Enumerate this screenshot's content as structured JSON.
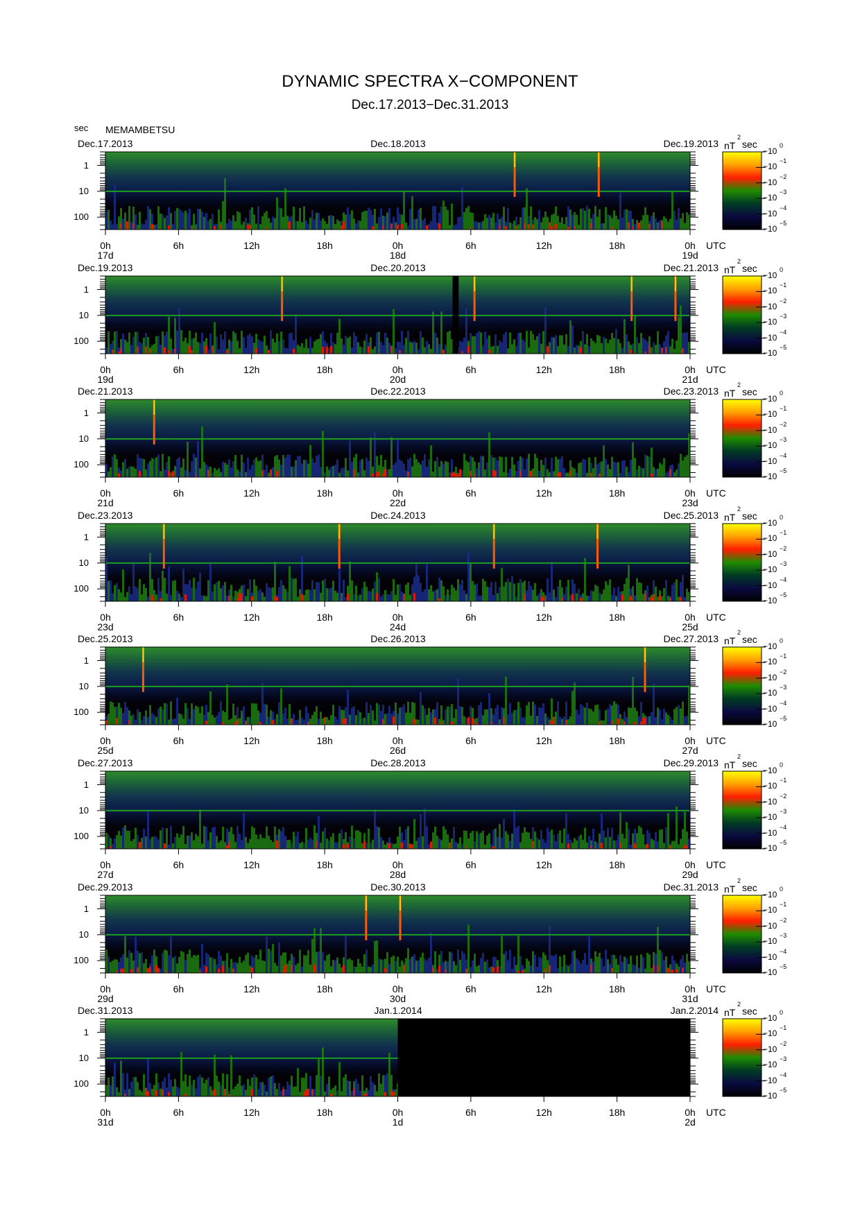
{
  "header": {
    "title": "DYNAMIC SPECTRA X−COMPONENT",
    "subtitle": "Dec.17.2013−Dec.31.2013",
    "y_unit": "sec",
    "station": "MEMAMBETSU"
  },
  "chart_data": {
    "type": "heatmap",
    "y_axis": {
      "label": "sec",
      "scale": "log",
      "range": [
        0.3,
        300
      ],
      "ticks": [
        "1",
        "10",
        "100"
      ],
      "inverted": true
    },
    "x_axis": {
      "ticks": [
        "0h",
        "6h",
        "12h",
        "18h",
        "0h",
        "6h",
        "12h",
        "18h",
        "0h"
      ],
      "unit_label": "UTC",
      "span_hours": 48
    },
    "colorbar": {
      "label": "nT",
      "label_sup": "2",
      "label_tail": "sec",
      "scale": "log",
      "tick_base": "10",
      "tick_exponents": [
        "0",
        "−1",
        "−2",
        "−3",
        "−4",
        "−5"
      ],
      "colors": [
        "#ffff00",
        "#ffa000",
        "#ff1e00",
        "#1e8c00",
        "#003a24",
        "#0a0a40",
        "#000000"
      ]
    },
    "line_color": "#1c9e1c",
    "panels": [
      {
        "start_date": "Dec.17.2013",
        "mid_date": "Dec.18.2013",
        "end_date": "Dec.19.2013",
        "day_labels": [
          "17d",
          "18d",
          "19d"
        ],
        "spikes_hours": [
          33.6,
          40.5
        ],
        "gap_hours": [],
        "nodata_from_hours": null
      },
      {
        "start_date": "Dec.19.2013",
        "mid_date": "Dec.20.2013",
        "end_date": "Dec.21.2013",
        "day_labels": [
          "19d",
          "20d",
          "21d"
        ],
        "spikes_hours": [
          14.5,
          30.3,
          43.2,
          46.8
        ],
        "gap_hours": [
          28.5,
          29.0
        ],
        "nodata_from_hours": null
      },
      {
        "start_date": "Dec.21.2013",
        "mid_date": "Dec.22.2013",
        "end_date": "Dec.23.2013",
        "day_labels": [
          "21d",
          "22d",
          "23d"
        ],
        "spikes_hours": [
          4.0
        ],
        "gap_hours": [],
        "nodata_from_hours": null
      },
      {
        "start_date": "Dec.23.2013",
        "mid_date": "Dec.24.2013",
        "end_date": "Dec.25.2013",
        "day_labels": [
          "23d",
          "24d",
          "25d"
        ],
        "spikes_hours": [
          4.8,
          19.2,
          31.9,
          40.4
        ],
        "gap_hours": [],
        "nodata_from_hours": null
      },
      {
        "start_date": "Dec.25.2013",
        "mid_date": "Dec.26.2013",
        "end_date": "Dec.27.2013",
        "day_labels": [
          "25d",
          "26d",
          "27d"
        ],
        "spikes_hours": [
          3.1,
          44.3
        ],
        "gap_hours": [],
        "nodata_from_hours": null
      },
      {
        "start_date": "Dec.27.2013",
        "mid_date": "Dec.28.2013",
        "end_date": "Dec.29.2013",
        "day_labels": [
          "27d",
          "28d",
          "29d"
        ],
        "spikes_hours": [],
        "gap_hours": [],
        "nodata_from_hours": null
      },
      {
        "start_date": "Dec.29.2013",
        "mid_date": "Dec.30.2013",
        "end_date": "Dec.31.2013",
        "day_labels": [
          "29d",
          "30d",
          "31d"
        ],
        "spikes_hours": [
          21.4,
          24.2
        ],
        "gap_hours": [],
        "nodata_from_hours": null
      },
      {
        "start_date": "Dec.31.2013",
        "mid_date": "Jan.1.2014",
        "end_date": "Jan.2.2014",
        "day_labels": [
          "31d",
          "1d",
          "2d"
        ],
        "spikes_hours": [],
        "gap_hours": [],
        "nodata_from_hours": 24
      }
    ]
  }
}
